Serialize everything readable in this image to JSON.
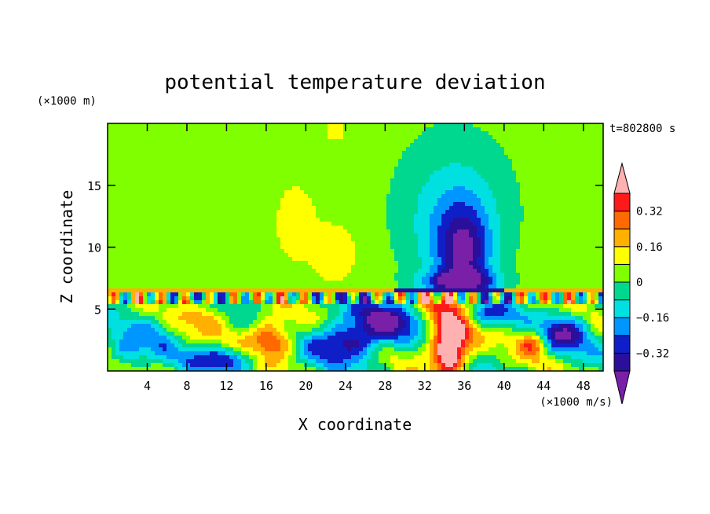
{
  "chart_data": {
    "type": "contour",
    "title": "potential temperature deviation",
    "xlabel": "X coordinate",
    "ylabel": "Z coordinate",
    "x_unit": "(×1000 m/s)",
    "y_unit": "(×1000 m)",
    "time_label": "t=802800 s",
    "xlim": [
      0,
      50
    ],
    "ylim": [
      0,
      20
    ],
    "x_ticks": [
      4,
      8,
      12,
      16,
      20,
      24,
      28,
      32,
      36,
      40,
      44,
      48
    ],
    "y_ticks": [
      5,
      10,
      15
    ],
    "colorbar": {
      "levels": [
        -0.4,
        -0.32,
        -0.24,
        -0.16,
        -0.08,
        0,
        0.08,
        0.16,
        0.24,
        0.32,
        0.4
      ],
      "tick_labels": [
        "0.32",
        "0.16",
        "0",
        "−0.16",
        "−0.32"
      ],
      "tick_values": [
        0.32,
        0.16,
        0,
        -0.16,
        -0.32
      ],
      "colors": [
        "#7a1fa8",
        "#2a0f9a",
        "#0f1fc8",
        "#0096ff",
        "#00e0e0",
        "#00d890",
        "#80ff00",
        "#ffff00",
        "#ffb000",
        "#ff6a00",
        "#ff1a1a",
        "#ffb0b0"
      ]
    },
    "field": {
      "background": 0.04,
      "upper_blobs": [
        {
          "x": 35,
          "z": 13.5,
          "rx": 6.5,
          "rz": 6.5,
          "v": -0.1
        },
        {
          "x": 35,
          "z": 11.0,
          "rx": 4.0,
          "rz": 5.0,
          "v": -0.14
        },
        {
          "x": 36,
          "z": 9.5,
          "rx": 2.5,
          "rz": 3.5,
          "v": -0.3
        },
        {
          "x": 35.5,
          "z": 7.2,
          "rx": 3.5,
          "rz": 0.9,
          "v": -0.38
        },
        {
          "x": 7,
          "z": 18.5,
          "rx": 5,
          "rz": 2.5,
          "v": -0.03
        },
        {
          "x": 19,
          "z": 12,
          "rx": 2,
          "rz": 3,
          "v": 0.1
        },
        {
          "x": 23,
          "z": 9.5,
          "rx": 2.2,
          "rz": 2.5,
          "v": 0.1
        },
        {
          "x": 23,
          "z": 19.5,
          "rx": 1,
          "rz": 1,
          "v": 0.1
        }
      ],
      "lower_blobs": [
        {
          "x": 34.5,
          "z": 3.5,
          "rx": 2.5,
          "rz": 3.2,
          "v": 0.42
        },
        {
          "x": 34.5,
          "z": 1.5,
          "rx": 1.5,
          "rz": 1.5,
          "v": 0.42
        },
        {
          "x": 16.5,
          "z": 2.5,
          "rx": 2.5,
          "rz": 1.7,
          "v": 0.4
        },
        {
          "x": 43,
          "z": 2.3,
          "rx": 1.5,
          "rz": 1.2,
          "v": 0.3
        },
        {
          "x": 24,
          "z": 2.3,
          "rx": 3.5,
          "rz": 1.5,
          "v": -0.38
        },
        {
          "x": 28,
          "z": 4.0,
          "rx": 4.0,
          "rz": 1.6,
          "v": -0.34
        },
        {
          "x": 12,
          "z": 1.0,
          "rx": 4.0,
          "rz": 1.0,
          "v": -0.3
        },
        {
          "x": 38,
          "z": 4.5,
          "rx": 2.5,
          "rz": 1.0,
          "v": -0.28
        },
        {
          "x": 46,
          "z": 3.0,
          "rx": 2.5,
          "rz": 1.5,
          "v": -0.34
        },
        {
          "x": 10,
          "z": 4.5,
          "rx": 3,
          "rz": 1.5,
          "v": 0.15
        },
        {
          "x": 5,
          "z": 3.0,
          "rx": 2,
          "rz": 2.0,
          "v": -0.1
        },
        {
          "x": 2,
          "z": 1.5,
          "rx": 2,
          "rz": 1.5,
          "v": -0.2
        }
      ]
    }
  }
}
